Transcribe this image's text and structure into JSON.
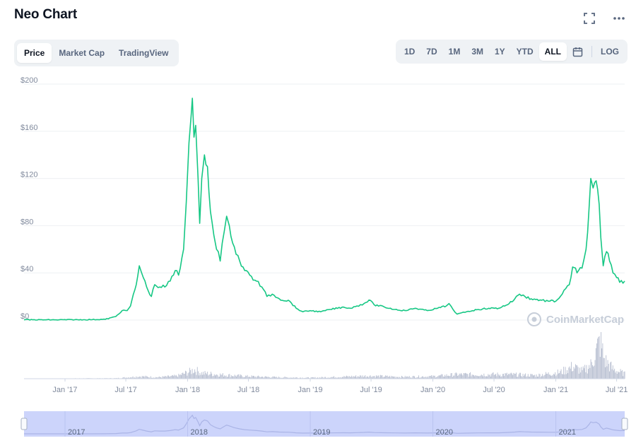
{
  "header": {
    "title": "Neo Chart"
  },
  "top_icons": [
    {
      "name": "fullscreen-icon"
    },
    {
      "name": "more-icon"
    }
  ],
  "tabs_left": [
    {
      "label": "Price",
      "active": true
    },
    {
      "label": "Market Cap",
      "active": false
    },
    {
      "label": "TradingView",
      "active": false
    }
  ],
  "ranges": [
    {
      "label": "1D",
      "active": false
    },
    {
      "label": "7D",
      "active": false
    },
    {
      "label": "1M",
      "active": false
    },
    {
      "label": "3M",
      "active": false
    },
    {
      "label": "1Y",
      "active": false
    },
    {
      "label": "YTD",
      "active": false
    },
    {
      "label": "ALL",
      "active": true
    }
  ],
  "log_label": "LOG",
  "watermark": "CoinMarketCap",
  "colors": {
    "line": "#16c784",
    "grid": "#eef0f3",
    "volume": "#b6bdd0",
    "navigator_bg": "#ccd4fb",
    "navigator_line": "#aab4e6",
    "axis_text": "#808a9d"
  },
  "chart_data": {
    "type": "line",
    "y_ticks": [
      "$200",
      "$160",
      "$120",
      "$80",
      "$40",
      "$0"
    ],
    "ylim": [
      0,
      200
    ],
    "x_ticks": [
      "Jan '17",
      "Jul '17",
      "Jan '18",
      "Jul '18",
      "Jan '19",
      "Jul '19",
      "Jan '20",
      "Jul '20",
      "Jan '21",
      "Jul '21"
    ],
    "navigator_labels": [
      "2017",
      "2018",
      "2019",
      "2020",
      "2021"
    ],
    "xlim": [
      "2016-09-01",
      "2021-07-25"
    ],
    "grid": true,
    "series": [
      {
        "values": [
          [
            "2016-09-01",
            0.2
          ],
          [
            "2016-12-01",
            0.2
          ],
          [
            "2017-03-01",
            0.3
          ],
          [
            "2017-05-01",
            0.6
          ],
          [
            "2017-06-01",
            3
          ],
          [
            "2017-06-20",
            8
          ],
          [
            "2017-07-05",
            8
          ],
          [
            "2017-07-15",
            12
          ],
          [
            "2017-08-01",
            30
          ],
          [
            "2017-08-10",
            46
          ],
          [
            "2017-08-22",
            36
          ],
          [
            "2017-09-01",
            28
          ],
          [
            "2017-09-15",
            20
          ],
          [
            "2017-09-25",
            30
          ],
          [
            "2017-10-10",
            28
          ],
          [
            "2017-10-25",
            28
          ],
          [
            "2017-11-10",
            33
          ],
          [
            "2017-11-25",
            42
          ],
          [
            "2017-12-05",
            38
          ],
          [
            "2017-12-20",
            60
          ],
          [
            "2017-12-28",
            100
          ],
          [
            "2018-01-05",
            150
          ],
          [
            "2018-01-12",
            175
          ],
          [
            "2018-01-15",
            188
          ],
          [
            "2018-01-20",
            155
          ],
          [
            "2018-01-25",
            165
          ],
          [
            "2018-02-01",
            120
          ],
          [
            "2018-02-06",
            82
          ],
          [
            "2018-02-12",
            120
          ],
          [
            "2018-02-20",
            140
          ],
          [
            "2018-03-01",
            130
          ],
          [
            "2018-03-10",
            92
          ],
          [
            "2018-03-20",
            72
          ],
          [
            "2018-03-28",
            60
          ],
          [
            "2018-04-08",
            50
          ],
          [
            "2018-04-20",
            75
          ],
          [
            "2018-04-27",
            88
          ],
          [
            "2018-05-05",
            80
          ],
          [
            "2018-05-20",
            62
          ],
          [
            "2018-06-05",
            50
          ],
          [
            "2018-06-20",
            42
          ],
          [
            "2018-07-05",
            38
          ],
          [
            "2018-07-25",
            33
          ],
          [
            "2018-08-10",
            28
          ],
          [
            "2018-08-25",
            20
          ],
          [
            "2018-09-10",
            22
          ],
          [
            "2018-10-01",
            18
          ],
          [
            "2018-11-01",
            16
          ],
          [
            "2018-11-20",
            10
          ],
          [
            "2018-12-10",
            7
          ],
          [
            "2019-01-01",
            8
          ],
          [
            "2019-02-01",
            7
          ],
          [
            "2019-03-01",
            9
          ],
          [
            "2019-04-10",
            11
          ],
          [
            "2019-05-01",
            10
          ],
          [
            "2019-05-20",
            12
          ],
          [
            "2019-06-10",
            14
          ],
          [
            "2019-06-25",
            17
          ],
          [
            "2019-07-10",
            13
          ],
          [
            "2019-08-10",
            11
          ],
          [
            "2019-09-10",
            9
          ],
          [
            "2019-10-10",
            8
          ],
          [
            "2019-11-10",
            10
          ],
          [
            "2019-12-15",
            8
          ],
          [
            "2020-01-15",
            10
          ],
          [
            "2020-02-10",
            12
          ],
          [
            "2020-02-18",
            14
          ],
          [
            "2020-03-01",
            9
          ],
          [
            "2020-03-13",
            5
          ],
          [
            "2020-04-10",
            7
          ],
          [
            "2020-05-15",
            9
          ],
          [
            "2020-06-15",
            10
          ],
          [
            "2020-07-15",
            10
          ],
          [
            "2020-08-15",
            14
          ],
          [
            "2020-09-01",
            18
          ],
          [
            "2020-09-15",
            22
          ],
          [
            "2020-10-01",
            20
          ],
          [
            "2020-10-20",
            18
          ],
          [
            "2020-11-15",
            17
          ],
          [
            "2020-12-10",
            16
          ],
          [
            "2021-01-01",
            16
          ],
          [
            "2021-01-20",
            22
          ],
          [
            "2021-02-10",
            30
          ],
          [
            "2021-02-20",
            45
          ],
          [
            "2021-03-05",
            40
          ],
          [
            "2021-03-20",
            44
          ],
          [
            "2021-04-01",
            60
          ],
          [
            "2021-04-10",
            95
          ],
          [
            "2021-04-15",
            120
          ],
          [
            "2021-04-22",
            112
          ],
          [
            "2021-05-01",
            118
          ],
          [
            "2021-05-10",
            98
          ],
          [
            "2021-05-15",
            70
          ],
          [
            "2021-05-22",
            46
          ],
          [
            "2021-06-01",
            58
          ],
          [
            "2021-06-10",
            50
          ],
          [
            "2021-06-20",
            40
          ],
          [
            "2021-07-01",
            36
          ],
          [
            "2021-07-10",
            32
          ],
          [
            "2021-07-25",
            33
          ]
        ]
      }
    ],
    "volume": [
      [
        "2016-09-01",
        0.3
      ],
      [
        "2017-06-01",
        1
      ],
      [
        "2017-08-10",
        5
      ],
      [
        "2017-10-01",
        3
      ],
      [
        "2017-12-01",
        6
      ],
      [
        "2018-01-10",
        16
      ],
      [
        "2018-01-20",
        20
      ],
      [
        "2018-02-10",
        12
      ],
      [
        "2018-04-20",
        8
      ],
      [
        "2018-07-01",
        5
      ],
      [
        "2018-10-01",
        3
      ],
      [
        "2019-01-01",
        2
      ],
      [
        "2019-06-20",
        6
      ],
      [
        "2019-10-01",
        4
      ],
      [
        "2020-01-01",
        5
      ],
      [
        "2020-03-13",
        9
      ],
      [
        "2020-08-15",
        9
      ],
      [
        "2020-11-01",
        7
      ],
      [
        "2021-01-15",
        14
      ],
      [
        "2021-02-20",
        26
      ],
      [
        "2021-03-20",
        16
      ],
      [
        "2021-04-15",
        30
      ],
      [
        "2021-05-12",
        80
      ],
      [
        "2021-05-25",
        40
      ],
      [
        "2021-06-20",
        20
      ],
      [
        "2021-07-25",
        10
      ]
    ],
    "volume_ylim": [
      0,
      80
    ]
  }
}
